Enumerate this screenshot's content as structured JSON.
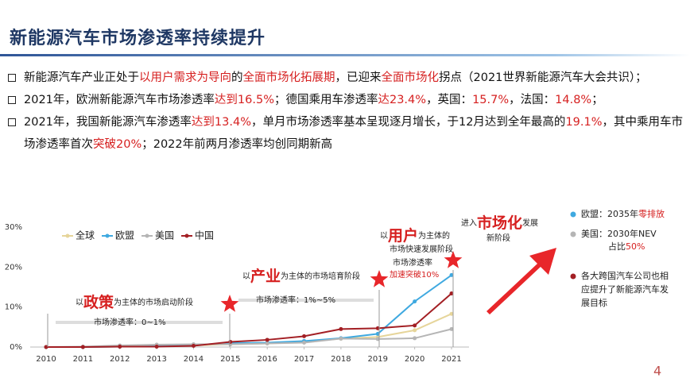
{
  "title": "新能源汽车市场渗透率持续提升",
  "bullets": [
    [
      "新能源汽车产业正处于",
      {
        "text": "以用户需求为导向",
        "color": "#d62020"
      },
      "的",
      {
        "text": "全面市场化拓展期",
        "color": "#d62020"
      },
      "，已迎来",
      {
        "text": "全面市场化",
        "color": "#d62020"
      },
      "拐点（2021世界新能源汽车大会共识）；"
    ],
    [
      "2021年，欧洲新能源汽车市场渗透率",
      {
        "text": "达到16.5%",
        "color": "#d62020"
      },
      "；德国乘用车渗透率",
      {
        "text": "达23.4%",
        "color": "#d62020"
      },
      "，英国：",
      {
        "text": "15.7%",
        "color": "#d62020"
      },
      "，法国：",
      {
        "text": "14.8%",
        "color": "#d62020"
      },
      "；"
    ],
    [
      "2021年，我国新能源汽车渗透率",
      {
        "text": "达到13.4%",
        "color": "#d62020"
      },
      "，单月市场渗透率基本呈现逐月增长，于12月达到全年最高的",
      {
        "text": "19.1%",
        "color": "#d62020"
      },
      "，其中乘用车市场渗透率首次",
      {
        "text": "突破20%",
        "color": "#d62020"
      },
      "；2022年前两月渗透率均创同期新高"
    ]
  ],
  "chart_data": {
    "type": "line",
    "x": [
      2010,
      2011,
      2012,
      2013,
      2014,
      2015,
      2016,
      2017,
      2018,
      2019,
      2020,
      2021
    ],
    "xlim": [
      2010,
      2021
    ],
    "xticks": [
      2010,
      2011,
      2012,
      2013,
      2014,
      2015,
      2016,
      2017,
      2018,
      2019,
      2020,
      2021
    ],
    "ylim": [
      0,
      30
    ],
    "yticks": [
      {
        "value": 0,
        "label": "0%"
      },
      {
        "value": 10,
        "label": "10%"
      },
      {
        "value": 20,
        "label": "20%"
      },
      {
        "value": 30,
        "label": "30%"
      }
    ],
    "series": [
      {
        "name": "全球",
        "color": "#e6d59a",
        "values": [
          0,
          0,
          0.1,
          0.2,
          0.4,
          0.7,
          0.9,
          1.3,
          2.1,
          2.5,
          4.2,
          8.3
        ]
      },
      {
        "name": "欧盟",
        "color": "#3fa9e0",
        "values": [
          0,
          0,
          0.1,
          0.2,
          0.5,
          1.0,
          1.1,
          1.5,
          2.2,
          3.3,
          11.4,
          18.0
        ]
      },
      {
        "name": "美国",
        "color": "#b5b5b5",
        "values": [
          0,
          0.1,
          0.4,
          0.6,
          0.7,
          0.7,
          0.9,
          1.1,
          2.1,
          2.0,
          2.2,
          4.5
        ]
      },
      {
        "name": "中国",
        "color": "#a31f24",
        "values": [
          0,
          0,
          0.1,
          0.1,
          0.3,
          1.3,
          1.8,
          2.7,
          4.5,
          4.7,
          5.4,
          13.4
        ]
      }
    ]
  },
  "annotations": [
    {
      "lines": [
        [
          "以",
          {
            "text": "政策",
            "color": "#d62020"
          },
          "为主体的市场启动阶段"
        ]
      ]
    },
    {
      "lines": [
        [
          "市场渗透率：0~1%"
        ]
      ]
    },
    {
      "lines": [
        [
          "以",
          {
            "text": "产业",
            "color": "#d62020"
          },
          "为主体的市场培育阶段"
        ]
      ]
    },
    {
      "lines": [
        [
          "市场渗透率：1%~5%"
        ]
      ]
    },
    {
      "lines": [
        [
          "以",
          {
            "text": "用户",
            "color": "#d62020"
          },
          "为主体的"
        ],
        [
          "市场快速发展阶段"
        ]
      ]
    },
    {
      "lines": [
        [
          "市场渗透率"
        ],
        [
          {
            "text": "加速突破10%",
            "color": "#d62020"
          }
        ]
      ]
    },
    {
      "lines": [
        [
          "进入",
          {
            "text": "市场化",
            "color": "#d62020"
          },
          "发展"
        ],
        [
          "新阶段"
        ]
      ]
    }
  ],
  "notes": [
    {
      "lines": [
        [
          "欧盟：2035年",
          {
            "text": "零排放",
            "color": "#d62020"
          }
        ]
      ]
    },
    {
      "lines": [
        [
          "美国：2030年NEV"
        ],
        [
          "占比",
          {
            "text": "50%",
            "color": "#d62020"
          }
        ]
      ]
    },
    {
      "lines": [
        [
          "各大跨国汽车公司也相"
        ],
        [
          "应提升了新能源汽车发"
        ],
        [
          "展目标"
        ]
      ]
    }
  ],
  "page_number": "4"
}
